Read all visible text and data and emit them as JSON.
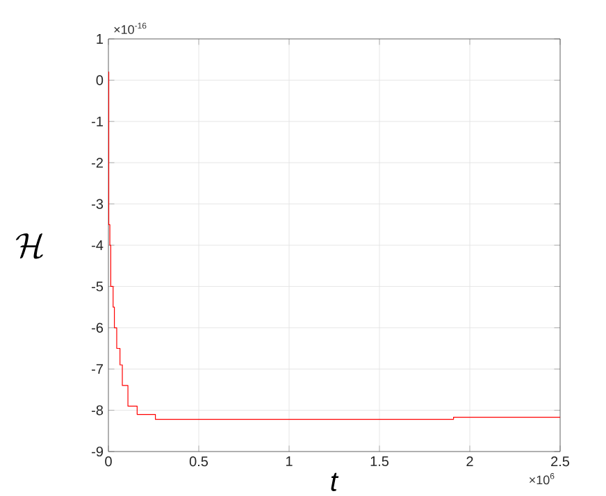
{
  "chart_data": {
    "type": "step",
    "xlabel": "*t*",
    "ylabel": "\\mathcal{H}",
    "x": [
      0,
      0.002,
      0.008,
      0.013,
      0.026,
      0.033,
      0.046,
      0.064,
      0.077,
      0.108,
      0.159,
      0.26,
      1.91,
      2.5
    ],
    "series": [
      {
        "color": "#ff0000",
        "values": [
          0.2,
          -3.5,
          -4.0,
          -5.0,
          -5.5,
          -6.0,
          -6.5,
          -6.9,
          -7.4,
          -7.9,
          -8.1,
          -8.22,
          -8.17,
          -8.17
        ]
      }
    ],
    "xlim": [
      0,
      2.5
    ],
    "xticks": [
      0,
      0.5,
      1,
      1.5,
      2,
      2.5
    ],
    "ylim": [
      -9,
      1
    ],
    "yticks": [
      -9,
      -8,
      -7,
      -6,
      -5,
      -4,
      -3,
      -2,
      -1,
      0,
      1
    ],
    "grid": true,
    "annotations": [
      "×10$^{-16}$",
      "×10$^{6}$"
    ]
  }
}
